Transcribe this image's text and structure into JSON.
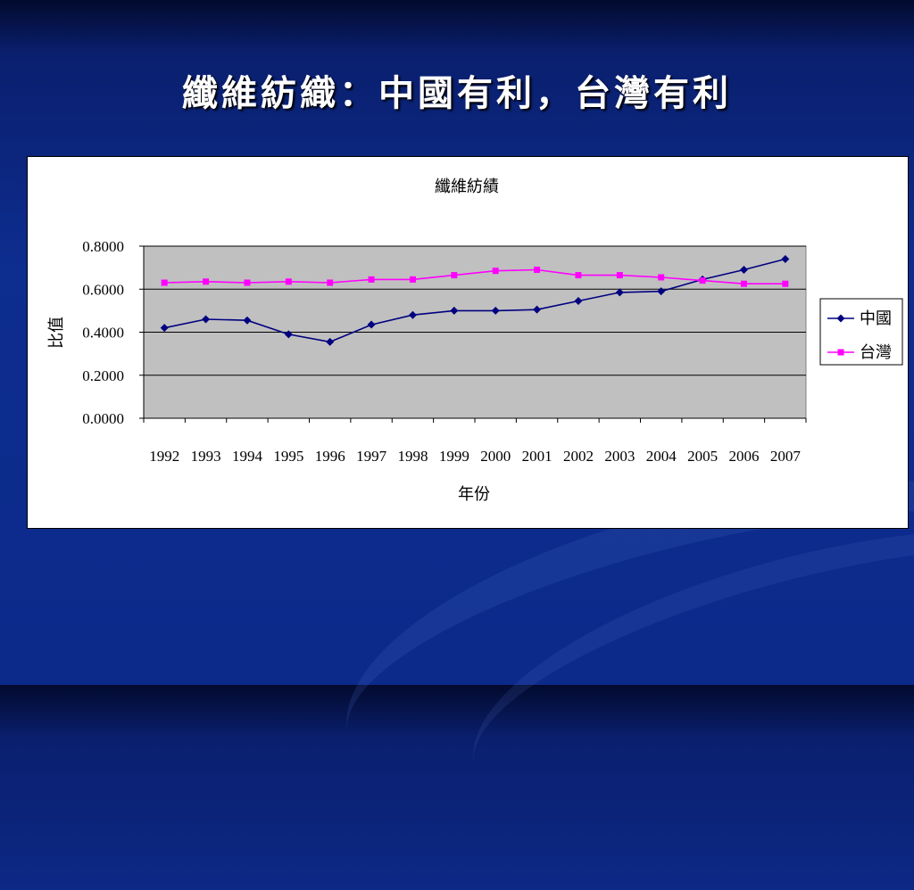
{
  "slide": {
    "title": "纖維紡織：中國有利，台灣有利"
  },
  "chart_data": {
    "type": "line",
    "title": "纖維紡績",
    "xlabel": "年份",
    "ylabel": "比值",
    "categories": [
      "1992",
      "1993",
      "1994",
      "1995",
      "1996",
      "1997",
      "1998",
      "1999",
      "2000",
      "2001",
      "2002",
      "2003",
      "2004",
      "2005",
      "2006",
      "2007"
    ],
    "ylim": [
      0,
      0.8
    ],
    "yticks": [
      "0.0000",
      "0.2000",
      "0.4000",
      "0.6000",
      "0.8000"
    ],
    "grid": true,
    "legend_position": "right",
    "plot_background": "#c0c0c0",
    "series": [
      {
        "name": "中國",
        "color": "#000080",
        "marker": "diamond",
        "values": [
          0.42,
          0.46,
          0.455,
          0.39,
          0.355,
          0.435,
          0.48,
          0.5,
          0.5,
          0.505,
          0.545,
          0.585,
          0.59,
          0.645,
          0.69,
          0.74
        ]
      },
      {
        "name": "台灣",
        "color": "#ff00ff",
        "marker": "square",
        "values": [
          0.63,
          0.635,
          0.63,
          0.635,
          0.63,
          0.645,
          0.645,
          0.665,
          0.685,
          0.69,
          0.665,
          0.665,
          0.655,
          0.64,
          0.625,
          0.625
        ]
      }
    ]
  }
}
